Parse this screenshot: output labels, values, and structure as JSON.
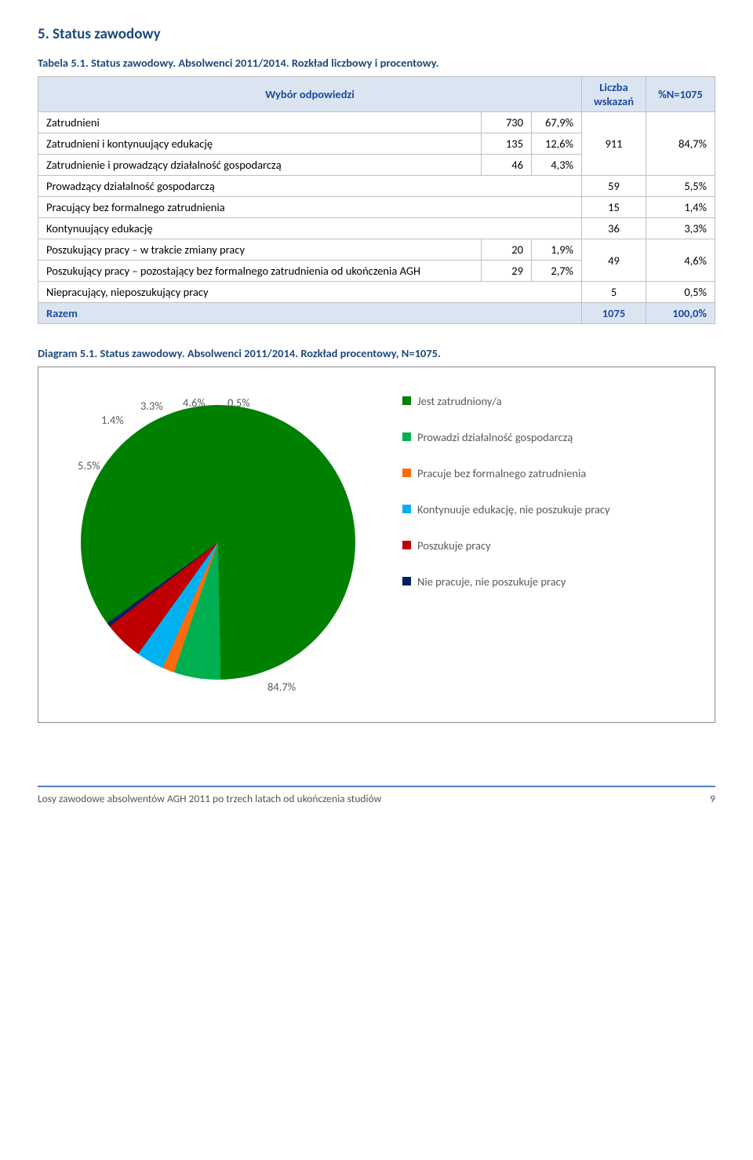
{
  "section_title": "5.  Status zawodowy",
  "table_caption": "Tabela 5.1. Status zawodowy. Absolwenci 2011/2014. Rozkład liczbowy i procentowy.",
  "headers": {
    "col_answer": "Wybór odpowiedzi",
    "col_count": "Liczba wskazań",
    "col_pctN": "%N=1075"
  },
  "group_top": {
    "rows": [
      {
        "label": "Zatrudnieni",
        "n": "730",
        "p": "67,9%"
      },
      {
        "label": "Zatrudnieni i kontynuujący edukację",
        "n": "135",
        "p": "12,6%"
      },
      {
        "label": "Zatrudnienie i prowadzący działalność gospodarczą",
        "n": "46",
        "p": "4,3%"
      }
    ],
    "agg_count": "911",
    "agg_pct": "84,7%"
  },
  "simple_rows": [
    {
      "label": "Prowadzący działalność gospodarczą",
      "count": "59",
      "pct": "5,5%"
    },
    {
      "label": "Pracujący bez formalnego zatrudnienia",
      "count": "15",
      "pct": "1,4%"
    },
    {
      "label": "Kontynuujący edukację",
      "count": "36",
      "pct": "3,3%"
    }
  ],
  "group_seek": {
    "rows": [
      {
        "label": "Poszukujący pracy – w trakcie zmiany pracy",
        "n": "20",
        "p": "1,9%"
      },
      {
        "label": "Poszukujący pracy – pozostający bez formalnego zatrudnienia od ukończenia AGH",
        "n": "29",
        "p": "2,7%"
      }
    ],
    "agg_count": "49",
    "agg_pct": "4,6%"
  },
  "last_row": {
    "label": "Niepracujący, nieposzukujący pracy",
    "count": "5",
    "pct": "0,5%"
  },
  "total_row": {
    "label": "Razem",
    "count": "1075",
    "pct": "100,0%"
  },
  "diagram_caption": "Diagram 5.1. Status zawodowy. Absolwenci 2011/2014. Rozkład procentowy, N=1075.",
  "pie": {
    "slices": [
      {
        "value": 84.7,
        "color": "#008000"
      },
      {
        "value": 5.5,
        "color": "#00b050"
      },
      {
        "value": 1.4,
        "color": "#fd6b0d"
      },
      {
        "value": 3.3,
        "color": "#00b0f0"
      },
      {
        "value": 4.6,
        "color": "#c00000"
      },
      {
        "value": 0.5,
        "color": "#002060"
      }
    ],
    "labels": {
      "l0": "84.7%",
      "l1": "5.5%",
      "l2": "1.4%",
      "l3": "3.3%",
      "l4": "4.6%",
      "l5": "0.5%"
    }
  },
  "legend": [
    {
      "color": "#008000",
      "label": "Jest zatrudniony/a"
    },
    {
      "color": "#00b050",
      "label": "Prowadzi działalność gospodarczą"
    },
    {
      "color": "#fd6b0d",
      "label": "Pracuje bez formalnego zatrudnienia"
    },
    {
      "color": "#00b0f0",
      "label": "Kontynuuje edukację, nie poszukuje pracy"
    },
    {
      "color": "#c00000",
      "label": "Poszukuje pracy"
    },
    {
      "color": "#002060",
      "label": "Nie pracuje, nie poszukuje pracy"
    }
  ],
  "footer_text": "Losy zawodowe absolwentów AGH 2011 po trzech latach od ukończenia studiów",
  "footer_page": "9"
}
